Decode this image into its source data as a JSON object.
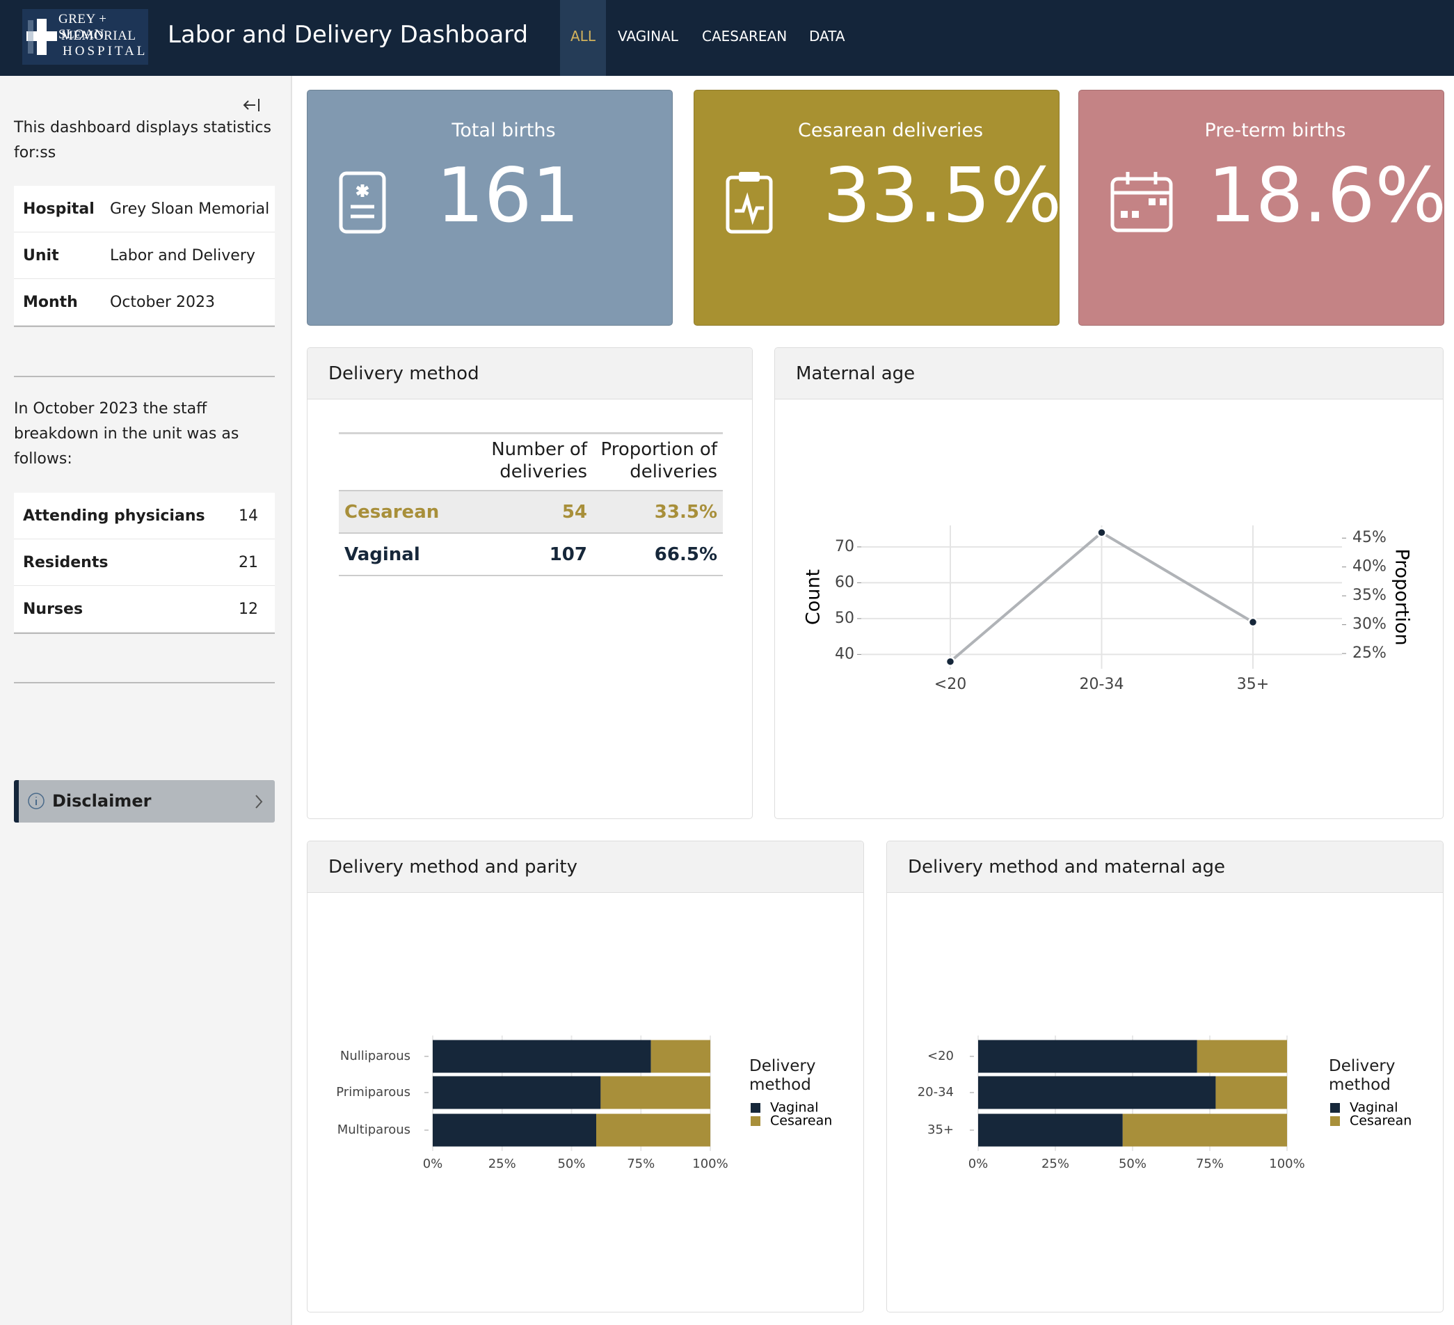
{
  "header": {
    "logo": [
      "GREY + SLOAN",
      "MEMORIAL",
      "HOSPITAL"
    ],
    "title": "Labor and Delivery Dashboard",
    "nav": [
      "ALL",
      "VAGINAL",
      "CAESAREAN",
      "DATA"
    ]
  },
  "sidebar": {
    "intro": "This dashboard displays statistics for:ss",
    "info": [
      [
        "Hospital",
        "Grey Sloan Memorial"
      ],
      [
        "Unit",
        "Labor and Delivery"
      ],
      [
        "Month",
        "October 2023"
      ]
    ],
    "staff_intro": "In October 2023 the staff breakdown in the unit was as follows:",
    "staff": [
      [
        "Attending physicians",
        14
      ],
      [
        "Residents",
        21
      ],
      [
        "Nurses",
        12
      ]
    ],
    "disclaimer": "Disclaimer"
  },
  "value_boxes": [
    {
      "title": "Total births",
      "value": "161",
      "color": "#8199b0"
    },
    {
      "title": "Cesarean deliveries",
      "value": "33.5%",
      "color": "#a89131"
    },
    {
      "title": "Pre-term births",
      "value": "18.6%",
      "color": "#c48385"
    }
  ],
  "delivery_table": {
    "title": "Delivery method",
    "headers": [
      "Number of deliveries",
      "Proportion of deliveries"
    ],
    "rows": [
      [
        "Cesarean",
        54,
        "33.5%"
      ],
      [
        "Vaginal",
        107,
        "66.5%"
      ]
    ]
  },
  "chart_data": [
    {
      "type": "line",
      "title": "Maternal age",
      "categories": [
        "<20",
        "20-34",
        "35+"
      ],
      "values": [
        38,
        74,
        49
      ],
      "color": "#b0b3b7",
      "y_label": "Count",
      "y2_label": "Proportion",
      "ylim": [
        36,
        76
      ],
      "yticks": [
        40,
        50,
        60,
        70
      ],
      "y2lim": [
        22.36,
        47.2
      ],
      "y2ticks": [
        {
          "value": 25,
          "label": "25%"
        },
        {
          "value": 30,
          "label": "30%"
        },
        {
          "value": 35,
          "label": "35%"
        },
        {
          "value": 40,
          "label": "40%"
        },
        {
          "value": 45,
          "label": "45%"
        }
      ],
      "grid": true
    },
    {
      "type": "hbar_stacked",
      "title": "Delivery method and parity",
      "categories": [
        "Nulliparous",
        "Primiparous",
        "Multiparous"
      ],
      "series": [
        {
          "name": "Vaginal",
          "color": "#16273a",
          "values": [
            78.6,
            60.5,
            58.9
          ]
        },
        {
          "name": "Cesarean",
          "color": "#a88f3a",
          "values": [
            21.4,
            39.5,
            41.1
          ]
        }
      ],
      "xlim": [
        0,
        100
      ],
      "xticks": [
        {
          "value": 0,
          "label": "0%"
        },
        {
          "value": 25,
          "label": "25%"
        },
        {
          "value": 50,
          "label": "50%"
        },
        {
          "value": 75,
          "label": "75%"
        },
        {
          "value": 100,
          "label": "100%"
        }
      ],
      "legend_title": "Delivery method",
      "grid": true
    },
    {
      "type": "hbar_stacked",
      "title": "Delivery method and maternal age",
      "categories": [
        "<20",
        "20-34",
        "35+"
      ],
      "series": [
        {
          "name": "Vaginal",
          "color": "#16273a",
          "values": [
            70.9,
            76.9,
            46.8
          ]
        },
        {
          "name": "Cesarean",
          "color": "#a88f3a",
          "values": [
            29.1,
            23.1,
            53.2
          ]
        }
      ],
      "xlim": [
        0,
        100
      ],
      "xticks": [
        {
          "value": 0,
          "label": "0%"
        },
        {
          "value": 25,
          "label": "25%"
        },
        {
          "value": 50,
          "label": "50%"
        },
        {
          "value": 75,
          "label": "75%"
        },
        {
          "value": 100,
          "label": "100%"
        }
      ],
      "legend_title": "Delivery method",
      "grid": true
    }
  ]
}
